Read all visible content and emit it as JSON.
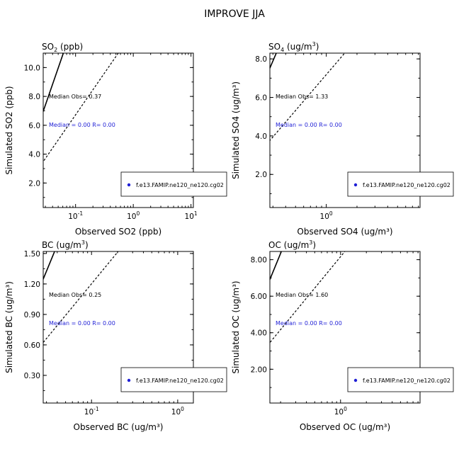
{
  "figure_title": "IMPROVE JJA",
  "legend_label": "f.e13.FAMIP.ne120_ne120.cg02",
  "legend_marker_color": "#1f1fd6",
  "chart_data": [
    {
      "type": "scatter",
      "title_base": "SO",
      "title_sub": "2",
      "title_sup": "",
      "title_rest": " (ppb)",
      "xlabel": "Observed SO2 (ppb)",
      "ylabel": "Simulated SO2 (ppb)",
      "x_scale": "log",
      "y_scale": "linear",
      "xlim": [
        0.0275,
        11
      ],
      "ylim": [
        0.3,
        11
      ],
      "x_ticks": [
        {
          "v": 0.1,
          "base": "10",
          "exp": "-1"
        },
        {
          "v": 1,
          "base": "10",
          "exp": "0"
        },
        {
          "v": 10,
          "base": "10",
          "exp": "1"
        }
      ],
      "y_ticks": [
        2.0,
        4.0,
        6.0,
        8.0,
        10.0
      ],
      "y_tick_labels": [
        "2.0",
        "4.0",
        "6.0",
        "8.0",
        "10.0"
      ],
      "lines": [
        "1:1",
        "2:1",
        "1:2"
      ],
      "median_obs_text": "Median Obs= 0.37",
      "median_text": "Median = 0.00 R= 0.00",
      "series": [
        {
          "name": "f.e13.FAMIP.ne120_ne120.cg02",
          "points": []
        }
      ]
    },
    {
      "type": "scatter",
      "title_base": "SO",
      "title_sub": "4",
      "title_sup": "",
      "title_rest": " (ug/m",
      "title_unit_sup": "3",
      "title_end": ")",
      "xlabel": "Observed SO4 (ug/m³)",
      "ylabel": "Simulated SO4 (ug/m³)",
      "x_scale": "log",
      "y_scale": "linear",
      "xlim": [
        0.28,
        8.3
      ],
      "ylim": [
        0.28,
        8.3
      ],
      "x_ticks": [
        {
          "v": 1,
          "base": "10",
          "exp": "0"
        }
      ],
      "y_ticks": [
        2.0,
        4.0,
        6.0,
        8.0
      ],
      "y_tick_labels": [
        "2.0",
        "4.0",
        "6.0",
        "8.0"
      ],
      "lines": [
        "1:1",
        "2:1",
        "1:2"
      ],
      "median_obs_text": "Median Obs= 1.33",
      "median_text": "Median = 0.00 R= 0.00",
      "series": [
        {
          "name": "f.e13.FAMIP.ne120_ne120.cg02",
          "points": []
        }
      ]
    },
    {
      "type": "scatter",
      "title_base": "BC (ug/m",
      "title_unit_sup": "3",
      "title_end": ")",
      "xlabel": "Observed BC (ug/m³)",
      "ylabel": "Simulated BC (ug/m³)",
      "x_scale": "log",
      "y_scale": "linear",
      "xlim": [
        0.0275,
        1.52
      ],
      "ylim": [
        0.0275,
        1.52
      ],
      "x_ticks": [
        {
          "v": 0.1,
          "base": "10",
          "exp": "-1"
        },
        {
          "v": 1,
          "base": "10",
          "exp": "0"
        }
      ],
      "y_ticks": [
        0.3,
        0.6,
        0.9,
        1.2,
        1.5
      ],
      "y_tick_labels": [
        "0.30",
        "0.60",
        "0.90",
        "1.20",
        "1.50"
      ],
      "lines": [
        "1:1",
        "2:1",
        "1:2"
      ],
      "median_obs_text": "Median Obs= 0.25",
      "median_text": "Median = 0.00 R= 0.00",
      "series": [
        {
          "name": "f.e13.FAMIP.ne120_ne120.cg02",
          "points": []
        }
      ]
    },
    {
      "type": "scatter",
      "title_base": "OC (ug/m",
      "title_unit_sup": "3",
      "title_end": ")",
      "xlabel": "Observed OC (ug/m³)",
      "ylabel": "Simulated OC (ug/m³)",
      "x_scale": "log",
      "y_scale": "linear",
      "xlim": [
        0.15,
        8.45
      ],
      "ylim": [
        0.15,
        8.45
      ],
      "x_ticks": [
        {
          "v": 1,
          "base": "10",
          "exp": "0"
        }
      ],
      "y_ticks": [
        2.0,
        4.0,
        6.0,
        8.0
      ],
      "y_tick_labels": [
        "2.00",
        "4.00",
        "6.00",
        "8.00"
      ],
      "lines": [
        "1:1",
        "2:1",
        "1:2"
      ],
      "median_obs_text": "Median Obs= 1.60",
      "median_text": "Median = 0.00 R= 0.00",
      "series": [
        {
          "name": "f.e13.FAMIP.ne120_ne120.cg02",
          "points": []
        }
      ]
    }
  ]
}
